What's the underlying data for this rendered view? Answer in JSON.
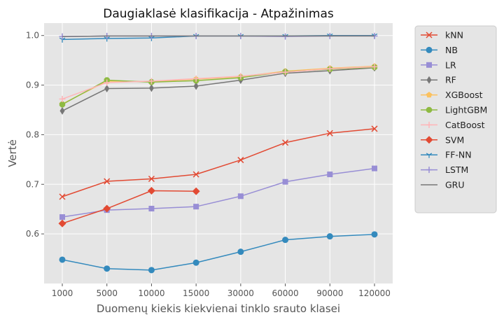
{
  "chart_data": {
    "type": "line",
    "title": "Daugiaklasė klasifikacija - Atpažinimas",
    "xlabel": "Duomenų kiekis kiekvienai tinklo srauto klasei",
    "ylabel": "Vertė",
    "categories": [
      "1000",
      "5000",
      "10000",
      "15000",
      "30000",
      "60000",
      "90000",
      "120000"
    ],
    "ylim": [
      0.5,
      1.025
    ],
    "yticks": [
      "0.6",
      "0.7",
      "0.8",
      "0.9",
      "1.0"
    ],
    "grid": true,
    "legend_position": "outside-right",
    "series": [
      {
        "name": "kNN",
        "color": "#E24A33",
        "marker": "x",
        "values": [
          0.675,
          0.706,
          0.711,
          0.72,
          0.749,
          0.784,
          0.803,
          0.812
        ]
      },
      {
        "name": "NB",
        "color": "#348ABD",
        "marker": "circle",
        "values": [
          0.548,
          0.53,
          0.527,
          0.542,
          0.564,
          0.588,
          0.595,
          0.599
        ]
      },
      {
        "name": "LR",
        "color": "#988ED5",
        "marker": "square",
        "values": [
          0.634,
          0.648,
          0.651,
          0.655,
          0.676,
          0.705,
          0.72,
          0.732
        ]
      },
      {
        "name": "RF",
        "color": "#777777",
        "marker": "thin-diamond",
        "values": [
          0.848,
          0.893,
          0.894,
          0.898,
          0.91,
          0.924,
          0.929,
          0.935
        ]
      },
      {
        "name": "XGBoost",
        "color": "#FBC15E",
        "marker": "pentagon",
        "values": [
          0.862,
          0.908,
          0.907,
          0.912,
          0.917,
          0.928,
          0.934,
          0.938
        ]
      },
      {
        "name": "LightGBM",
        "color": "#8EBA42",
        "marker": "octagon",
        "values": [
          0.861,
          0.91,
          0.906,
          0.909,
          0.915,
          0.927,
          0.932,
          0.936
        ]
      },
      {
        "name": "CatBoost",
        "color": "#FFB5B8",
        "marker": "plus",
        "values": [
          0.872,
          0.905,
          0.908,
          0.913,
          0.918,
          0.926,
          0.933,
          0.937
        ]
      },
      {
        "name": "SVM",
        "color": "#E24A33",
        "marker": "diamond",
        "values": [
          0.621,
          0.651,
          0.687,
          0.686,
          null,
          null,
          null,
          null
        ]
      },
      {
        "name": "FF-NN",
        "color": "#348ABD",
        "marker": "tri",
        "values": [
          0.992,
          0.994,
          0.995,
          0.999,
          0.999,
          0.999,
          1.0,
          1.0
        ]
      },
      {
        "name": "LSTM",
        "color": "#988ED5",
        "marker": "plus",
        "values": [
          0.998,
          0.999,
          0.999,
          0.999,
          0.999,
          0.998,
          0.999,
          0.999
        ]
      },
      {
        "name": "GRU",
        "color": "#777777",
        "marker": "none",
        "values": [
          0.998,
          0.999,
          0.999,
          0.999,
          0.999,
          0.999,
          0.999,
          0.999
        ]
      }
    ]
  },
  "colors": {
    "plot_background": "#E5E5E5",
    "grid": "#FFFFFF",
    "legend_background": "#E5E5E5",
    "legend_border": "#CCCCCC"
  }
}
